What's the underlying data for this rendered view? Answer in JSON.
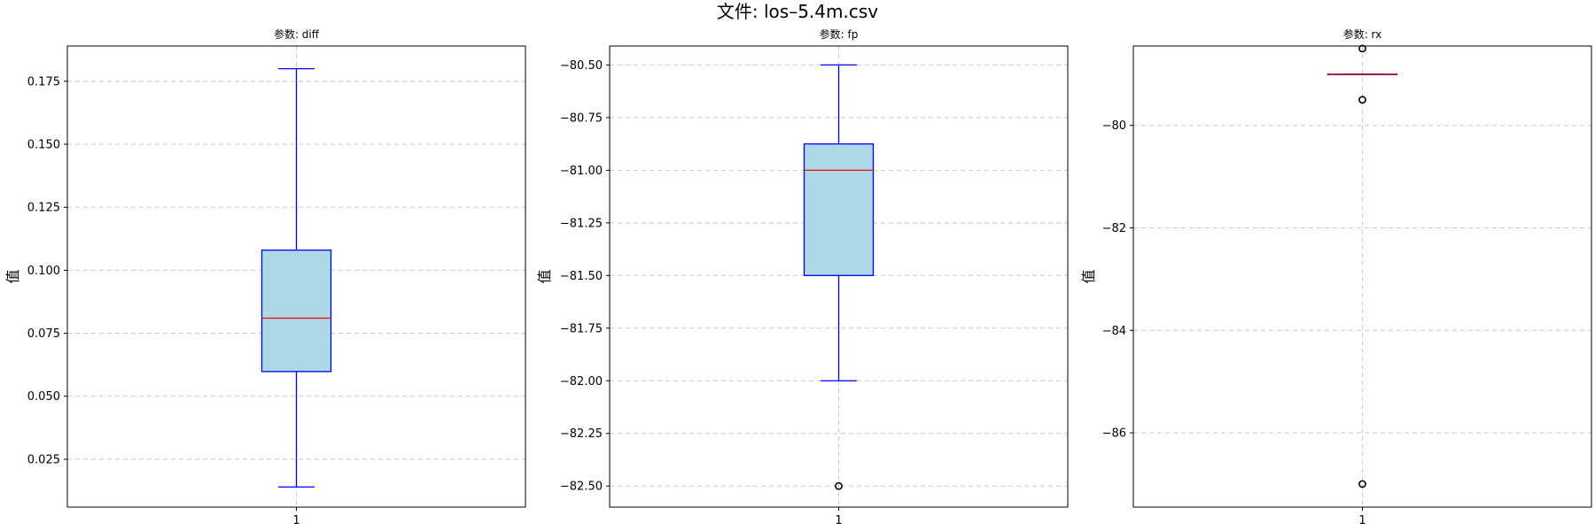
{
  "figure": {
    "title": "文件: los–5.4m.csv"
  },
  "chart_data": [
    {
      "type": "box",
      "title": "参数: diff",
      "xlabel": "",
      "ylabel": "值",
      "categories": [
        "1"
      ],
      "ylim": [
        0.006,
        0.189
      ],
      "yticks": [
        0.025,
        0.05,
        0.075,
        0.1,
        0.125,
        0.15,
        0.175
      ],
      "ytick_labels": [
        "0.025",
        "0.050",
        "0.075",
        "0.100",
        "0.125",
        "0.150",
        "0.175"
      ],
      "grid": true,
      "box": {
        "whisker_low": 0.014,
        "q1": 0.0598,
        "median": 0.081,
        "q3": 0.108,
        "whisker_high": 0.18,
        "outliers": []
      }
    },
    {
      "type": "box",
      "title": "参数: fp",
      "xlabel": "",
      "ylabel": "值",
      "categories": [
        "1"
      ],
      "ylim": [
        -82.6,
        -80.41
      ],
      "yticks": [
        -80.5,
        -80.75,
        -81.0,
        -81.25,
        -81.5,
        -81.75,
        -82.0,
        -82.25,
        -82.5
      ],
      "ytick_labels": [
        "−80.50",
        "−80.75",
        "−81.00",
        "−81.25",
        "−81.50",
        "−81.75",
        "−82.00",
        "−82.25",
        "−82.50"
      ],
      "grid": true,
      "box": {
        "whisker_low": -82.0,
        "q1": -81.5,
        "median": -81.0,
        "q3": -80.875,
        "whisker_high": -80.5,
        "outliers": [
          -82.5
        ]
      }
    },
    {
      "type": "box",
      "title": "参数: rx",
      "xlabel": "",
      "ylabel": "值",
      "categories": [
        "1"
      ],
      "ylim": [
        -87.45,
        -78.45
      ],
      "yticks": [
        -80,
        -82,
        -84,
        -86
      ],
      "ytick_labels": [
        "−80",
        "−82",
        "−84",
        "−86"
      ],
      "grid": true,
      "box": {
        "whisker_low": -79.0,
        "q1": -79.0,
        "median": -79.0,
        "q3": -79.0,
        "whisker_high": -79.0,
        "outliers": [
          -78.5,
          -79.5,
          -87.0
        ]
      }
    }
  ],
  "style": {
    "box_fill": "#add8e6",
    "box_edge": "#0000ff",
    "median_color": "#ff0000",
    "grid_color": "#c8c8c8",
    "axes_color": "#000000"
  }
}
